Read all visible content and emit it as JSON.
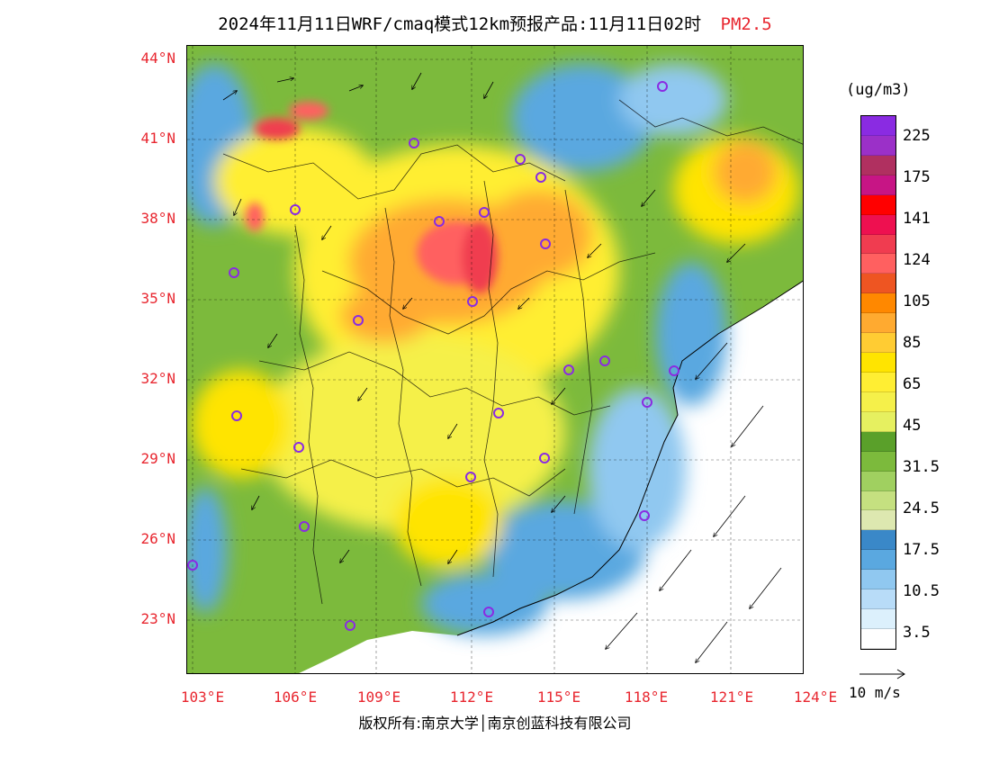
{
  "title": {
    "main": "2024年11月11日WRF/cmaq模式12km预报产品:11月11日02时",
    "pollutant": "PM2.5"
  },
  "axes": {
    "lat_labels": [
      "44°N",
      "41°N",
      "38°N",
      "35°N",
      "32°N",
      "29°N",
      "26°N",
      "23°N"
    ],
    "lon_labels": [
      "103°E",
      "106°E",
      "109°E",
      "112°E",
      "115°E",
      "118°E",
      "121°E",
      "124°E"
    ]
  },
  "legend": {
    "unit": "(ug/m3)",
    "colors": [
      "#8a2be2",
      "#9b30c8",
      "#b03060",
      "#c71585",
      "#ff0000",
      "#ee1050",
      "#f03c50",
      "#ff6060",
      "#ee5522",
      "#ff8800",
      "#ffaa30",
      "#ffcc33",
      "#ffe400",
      "#ffee33",
      "#f5f04a",
      "#e6f060",
      "#5aa02a",
      "#7cba3c",
      "#a0d060",
      "#c5e080",
      "#dde8b0",
      "#3a88c8",
      "#5aa8e0",
      "#90c8f0",
      "#b8dcf8",
      "#dcf0fc",
      "#ffffff"
    ],
    "ticks": [
      "225",
      "175",
      "141",
      "124",
      "105",
      "85",
      "65",
      "45",
      "31.5",
      "24.5",
      "17.5",
      "10.5",
      "3.5"
    ]
  },
  "wind_reference": {
    "label": "10 m/s"
  },
  "copyright": "版权所有:南京大学│南京创蓝科技有限公司",
  "map_palette": {
    "ocean_white": "#ffffff",
    "ocean_light": "#dcf0fc",
    "blue_low": "#5aa8e0",
    "green_mid": "#7cba3c",
    "yellow_high": "#ffe400",
    "orange": "#ffaa30",
    "red": "#f03c50"
  }
}
